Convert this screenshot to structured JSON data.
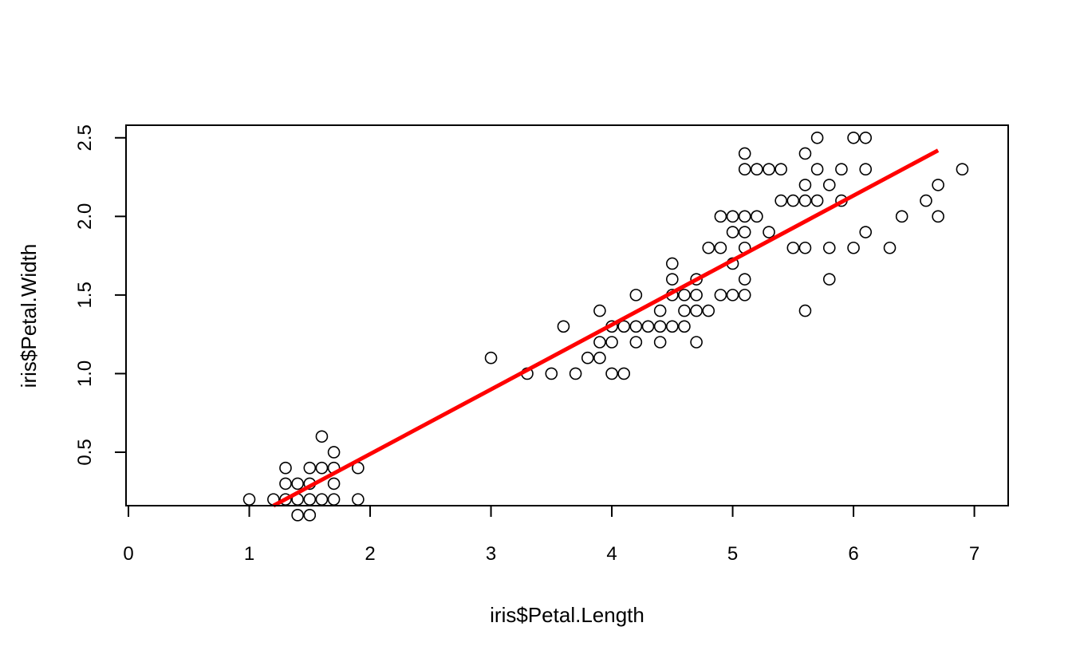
{
  "chart_data": {
    "type": "scatter",
    "xlabel": "iris$Petal.Length",
    "ylabel": "iris$Petal.Width",
    "xlim": [
      -0.02,
      7.28
    ],
    "ylim": [
      0.16,
      2.58
    ],
    "x_ticks": [
      0,
      1,
      2,
      3,
      4,
      5,
      6,
      7
    ],
    "y_ticks": [
      0.5,
      1.0,
      1.5,
      2.0,
      2.5
    ],
    "x_tick_labels": [
      "0",
      "1",
      "2",
      "3",
      "4",
      "5",
      "6",
      "7"
    ],
    "y_tick_labels": [
      "0.5",
      "1.0",
      "1.5",
      "2.0",
      "2.5"
    ],
    "grid": false,
    "legend": "none",
    "points": [
      [
        1.0,
        0.2
      ],
      [
        1.2,
        0.2
      ],
      [
        1.3,
        0.2
      ],
      [
        1.3,
        0.3
      ],
      [
        1.3,
        0.4
      ],
      [
        1.4,
        0.1
      ],
      [
        1.4,
        0.2
      ],
      [
        1.4,
        0.3
      ],
      [
        1.5,
        0.1
      ],
      [
        1.5,
        0.2
      ],
      [
        1.5,
        0.3
      ],
      [
        1.5,
        0.4
      ],
      [
        1.6,
        0.2
      ],
      [
        1.6,
        0.4
      ],
      [
        1.6,
        0.6
      ],
      [
        1.7,
        0.2
      ],
      [
        1.7,
        0.3
      ],
      [
        1.7,
        0.4
      ],
      [
        1.7,
        0.5
      ],
      [
        1.9,
        0.2
      ],
      [
        1.9,
        0.4
      ],
      [
        3.0,
        1.1
      ],
      [
        3.3,
        1.0
      ],
      [
        3.5,
        1.0
      ],
      [
        3.6,
        1.3
      ],
      [
        3.7,
        1.0
      ],
      [
        3.8,
        1.1
      ],
      [
        3.9,
        1.1
      ],
      [
        3.9,
        1.2
      ],
      [
        3.9,
        1.4
      ],
      [
        4.0,
        1.0
      ],
      [
        4.0,
        1.2
      ],
      [
        4.0,
        1.3
      ],
      [
        4.1,
        1.0
      ],
      [
        4.1,
        1.3
      ],
      [
        4.2,
        1.2
      ],
      [
        4.2,
        1.3
      ],
      [
        4.2,
        1.5
      ],
      [
        4.3,
        1.3
      ],
      [
        4.4,
        1.2
      ],
      [
        4.4,
        1.3
      ],
      [
        4.4,
        1.4
      ],
      [
        4.5,
        1.3
      ],
      [
        4.5,
        1.5
      ],
      [
        4.5,
        1.6
      ],
      [
        4.5,
        1.7
      ],
      [
        4.6,
        1.3
      ],
      [
        4.6,
        1.4
      ],
      [
        4.6,
        1.5
      ],
      [
        4.7,
        1.2
      ],
      [
        4.7,
        1.4
      ],
      [
        4.7,
        1.5
      ],
      [
        4.7,
        1.6
      ],
      [
        4.8,
        1.4
      ],
      [
        4.8,
        1.8
      ],
      [
        4.9,
        1.5
      ],
      [
        4.9,
        1.8
      ],
      [
        4.9,
        2.0
      ],
      [
        5.0,
        1.5
      ],
      [
        5.0,
        1.7
      ],
      [
        5.0,
        1.9
      ],
      [
        5.0,
        2.0
      ],
      [
        5.1,
        1.5
      ],
      [
        5.1,
        1.6
      ],
      [
        5.1,
        1.8
      ],
      [
        5.1,
        1.9
      ],
      [
        5.1,
        2.0
      ],
      [
        5.1,
        2.3
      ],
      [
        5.1,
        2.4
      ],
      [
        5.2,
        2.0
      ],
      [
        5.2,
        2.3
      ],
      [
        5.3,
        1.9
      ],
      [
        5.3,
        2.3
      ],
      [
        5.4,
        2.1
      ],
      [
        5.4,
        2.3
      ],
      [
        5.5,
        1.8
      ],
      [
        5.5,
        2.1
      ],
      [
        5.6,
        1.4
      ],
      [
        5.6,
        1.8
      ],
      [
        5.6,
        2.1
      ],
      [
        5.6,
        2.2
      ],
      [
        5.6,
        2.4
      ],
      [
        5.7,
        2.1
      ],
      [
        5.7,
        2.3
      ],
      [
        5.7,
        2.5
      ],
      [
        5.8,
        1.6
      ],
      [
        5.8,
        1.8
      ],
      [
        5.8,
        2.2
      ],
      [
        5.9,
        2.1
      ],
      [
        5.9,
        2.3
      ],
      [
        6.0,
        1.8
      ],
      [
        6.0,
        2.5
      ],
      [
        6.1,
        1.9
      ],
      [
        6.1,
        2.3
      ],
      [
        6.1,
        2.5
      ],
      [
        6.3,
        1.8
      ],
      [
        6.4,
        2.0
      ],
      [
        6.6,
        2.1
      ],
      [
        6.7,
        2.0
      ],
      [
        6.7,
        2.2
      ],
      [
        6.9,
        2.3
      ]
    ],
    "fit_line": {
      "color": "#ff0000",
      "x": [
        1.2,
        6.7
      ],
      "y": [
        0.16,
        2.42
      ]
    },
    "point_color": "#000000"
  }
}
